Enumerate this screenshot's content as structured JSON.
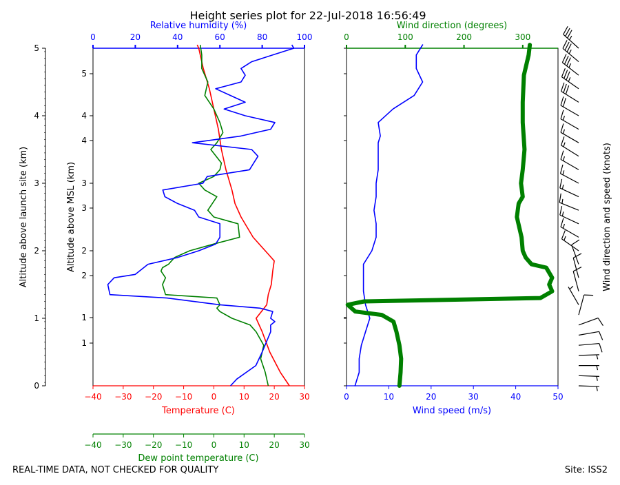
{
  "title": "Height series plot for 22-Jul-2018 16:56:49",
  "footer": {
    "left": "REAL-TIME DATA, NOT CHECKED FOR QUALITY",
    "right": "Site: ISS2"
  },
  "colors": {
    "red": "#ff0000",
    "blue": "#0000ff",
    "green": "#008000",
    "black": "#000000"
  },
  "chart_data": [
    {
      "id": "thermo",
      "type": "line",
      "axes": {
        "bottom": {
          "label": "Temperature (C)",
          "range": [
            -40,
            30
          ],
          "ticks": [
            -40,
            -30,
            -20,
            -10,
            0,
            10,
            20,
            30
          ],
          "color": "#ff0000"
        },
        "bottom2": {
          "label": "Dew point temperature (C)",
          "range": [
            -40,
            30
          ],
          "ticks": [
            -40,
            -30,
            -20,
            -10,
            0,
            10,
            20,
            30
          ],
          "color": "#008000"
        },
        "top": {
          "label": "Relative humidity (%)",
          "range": [
            0,
            100
          ],
          "ticks": [
            0,
            20,
            40,
            60,
            80,
            100
          ],
          "color": "#0000ff"
        },
        "left_agl": {
          "label": "Altitude above launch site (km)",
          "range": [
            0,
            5
          ],
          "ticks": [
            0,
            1,
            2,
            3,
            4,
            5
          ]
        },
        "left_msl": {
          "label": "Altitude above MSL (km)",
          "ticks": [
            1,
            2,
            3,
            4,
            5
          ]
        }
      },
      "series": [
        {
          "name": "Temperature",
          "axis": "bottom",
          "color": "#ff0000",
          "alt_agl": [
            0,
            0.2,
            0.5,
            0.8,
            1.0,
            1.2,
            1.35,
            1.5,
            1.7,
            1.85,
            1.95,
            2.2,
            2.5,
            2.7,
            2.9,
            3.2,
            3.5,
            3.8,
            4.1,
            4.4,
            4.7,
            5.0,
            5.05
          ],
          "values": [
            25,
            22,
            18.5,
            16,
            14,
            17.5,
            18,
            19,
            19.5,
            20,
            18,
            13,
            9,
            7,
            6,
            4,
            2.5,
            1.5,
            0,
            -1.5,
            -3.5,
            -5,
            -5.5
          ]
        },
        {
          "name": "Dew point temperature",
          "axis": "bottom",
          "color": "#008000",
          "alt_agl": [
            0,
            0.2,
            0.4,
            0.6,
            0.8,
            0.9,
            1.0,
            1.1,
            1.15,
            1.2,
            1.3,
            1.35,
            1.5,
            1.6,
            1.7,
            1.75,
            1.8,
            1.9,
            2.0,
            2.1,
            2.2,
            2.4,
            2.5,
            2.6,
            2.8,
            2.9,
            3.0,
            3.1,
            3.2,
            3.3,
            3.5,
            3.6,
            3.75,
            3.9,
            4.1,
            4.3,
            4.5,
            4.7,
            4.9,
            5.05
          ],
          "values": [
            18,
            17,
            15.5,
            16.5,
            14,
            12,
            6,
            2,
            1,
            2,
            1,
            -16,
            -17,
            -16,
            -17.5,
            -17,
            -15,
            -13,
            -8,
            0,
            8.5,
            8,
            0,
            -2,
            1,
            -3,
            -5,
            0,
            2,
            2.5,
            -1,
            1,
            3,
            2,
            0,
            -3,
            -2,
            -4,
            -4,
            -4.5
          ]
        },
        {
          "name": "Relative humidity",
          "axis": "top",
          "color": "#0000ff",
          "alt_agl": [
            0,
            0.1,
            0.3,
            0.5,
            0.8,
            0.9,
            0.95,
            1.0,
            1.1,
            1.15,
            1.2,
            1.3,
            1.35,
            1.5,
            1.6,
            1.65,
            1.8,
            1.9,
            2.0,
            2.1,
            2.2,
            2.4,
            2.5,
            2.6,
            2.7,
            2.8,
            2.9,
            3.0,
            3.1,
            3.2,
            3.3,
            3.4,
            3.5,
            3.6,
            3.7,
            3.8,
            3.9,
            4.0,
            4.1,
            4.2,
            4.3,
            4.4,
            4.5,
            4.6,
            4.7,
            4.8,
            4.9,
            5.0,
            5.05
          ],
          "values": [
            65,
            68,
            77,
            80,
            84,
            84,
            86,
            84,
            85,
            79,
            60,
            35,
            8,
            7,
            10,
            20,
            26,
            40,
            50,
            58,
            60,
            60,
            50,
            48,
            40,
            34,
            33,
            52,
            54,
            74,
            76,
            78,
            75,
            47,
            70,
            84,
            86,
            72,
            62,
            72,
            65,
            58,
            70,
            72,
            70,
            75,
            85,
            95,
            94
          ]
        }
      ]
    },
    {
      "id": "wind",
      "type": "line",
      "axes": {
        "bottom": {
          "label": "Wind speed (m/s)",
          "range": [
            0,
            50
          ],
          "ticks": [
            0,
            10,
            20,
            30,
            40,
            50
          ],
          "color": "#0000ff"
        },
        "top": {
          "label": "Wind direction (degrees)",
          "range": [
            0,
            360
          ],
          "ticks": [
            0,
            100,
            200,
            300
          ],
          "color": "#008000"
        }
      },
      "series": [
        {
          "name": "Wind speed",
          "axis": "bottom",
          "color": "#0000ff",
          "alt_agl": [
            0,
            0.2,
            0.4,
            0.6,
            0.8,
            1.0,
            1.1,
            1.2,
            1.4,
            1.6,
            1.8,
            2.0,
            2.2,
            2.4,
            2.6,
            2.8,
            3.0,
            3.2,
            3.4,
            3.6,
            3.7,
            3.9,
            4.1,
            4.3,
            4.5,
            4.7,
            4.9,
            5.05
          ],
          "values": [
            2,
            3,
            3,
            3.5,
            4.5,
            5.5,
            5,
            4.5,
            4,
            4,
            4,
            6,
            7,
            7,
            6.5,
            7,
            7,
            7.5,
            7.5,
            7.5,
            8,
            7.5,
            11,
            16,
            18,
            16.5,
            16.5,
            18
          ]
        },
        {
          "name": "Wind direction",
          "axis": "top",
          "color": "#008000",
          "alt_agl": [
            0,
            0.2,
            0.4,
            0.6,
            0.8,
            0.95,
            1.05,
            1.1,
            1.2,
            1.25,
            1.3,
            1.4,
            1.5,
            1.6,
            1.75,
            1.8,
            1.9,
            2.0,
            2.2,
            2.5,
            2.7,
            2.8,
            3.0,
            3.2,
            3.5,
            3.9,
            4.2,
            4.6,
            4.9,
            5.05
          ],
          "values": [
            90,
            92,
            93,
            90,
            85,
            80,
            60,
            15,
            2,
            30,
            330,
            350,
            345,
            350,
            340,
            315,
            305,
            300,
            298,
            290,
            293,
            300,
            297,
            300,
            303,
            300,
            300,
            302,
            310,
            312
          ]
        }
      ]
    },
    {
      "id": "barbs",
      "type": "barbs",
      "label": "Wind direction and speed (knots)",
      "alt_agl": [
        0,
        0.15,
        0.3,
        0.45,
        0.6,
        0.75,
        0.9,
        1.05,
        1.2,
        1.4,
        1.6,
        1.8,
        2.0,
        2.2,
        2.4,
        2.6,
        2.8,
        3.0,
        3.2,
        3.4,
        3.6,
        3.8,
        4.0,
        4.2,
        4.4,
        4.6,
        4.8,
        5.0
      ],
      "speed_kt": [
        5,
        6,
        6,
        7,
        9,
        11,
        10,
        8,
        5,
        8,
        12,
        12,
        14,
        14,
        13,
        14,
        14,
        14,
        15,
        15,
        15,
        16,
        22,
        30,
        33,
        33,
        33,
        35
      ],
      "direction_deg": [
        92,
        92,
        90,
        88,
        85,
        80,
        70,
        15,
        330,
        345,
        345,
        340,
        305,
        300,
        295,
        292,
        295,
        298,
        300,
        302,
        300,
        300,
        300,
        302,
        305,
        308,
        310,
        312
      ]
    }
  ]
}
